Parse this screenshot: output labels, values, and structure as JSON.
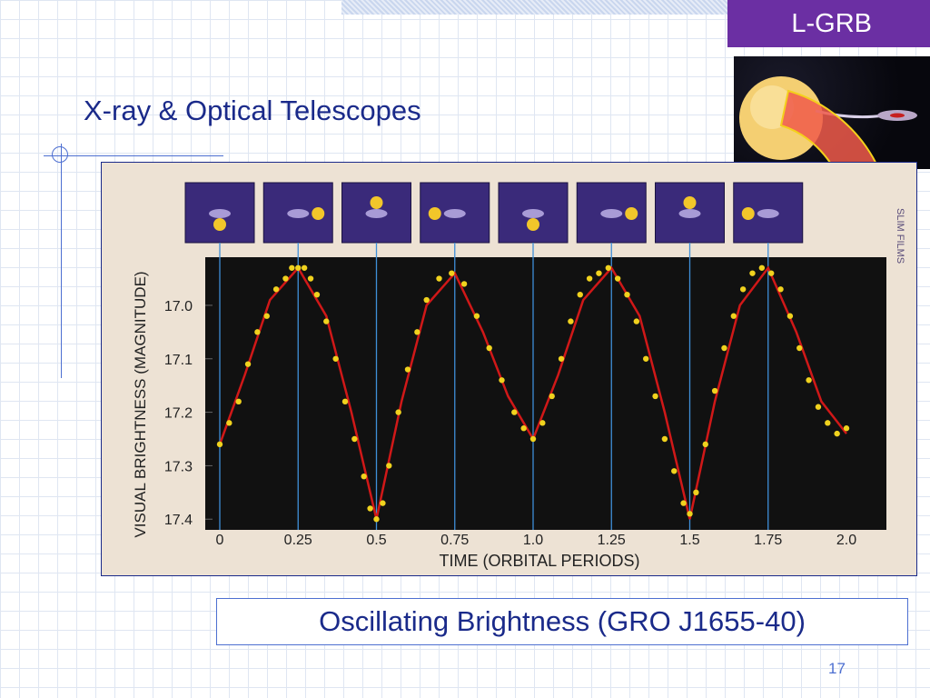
{
  "slide": {
    "title": "X-ray & Optical Telescopes",
    "tag": "L-GRB",
    "caption": "Oscillating Brightness (GRO J1655-40)",
    "page_number": "17",
    "credit": "SLIM FILMS",
    "accent_color": "#6b2fa3",
    "title_color": "#1a2a8a"
  },
  "chart_data": {
    "type": "scatter",
    "title": "",
    "xlabel": "TIME (ORBITAL PERIODS)",
    "ylabel": "VISUAL BRIGHTNESS (MAGNITUDE)",
    "xlim": [
      0,
      2.0
    ],
    "ylim": [
      17.42,
      16.91
    ],
    "y_reversed": true,
    "x_ticks": [
      "0",
      "0.25",
      "0.5",
      "0.75",
      "1.0",
      "1.25",
      "1.5",
      "1.75",
      "2.0"
    ],
    "y_ticks": [
      "17.0",
      "17.1",
      "17.2",
      "17.3",
      "17.4"
    ],
    "background": "#111111",
    "series": [
      {
        "color": "#f0d21e",
        "marker": "dot",
        "points": [
          [
            0.0,
            17.26
          ],
          [
            0.03,
            17.22
          ],
          [
            0.06,
            17.18
          ],
          [
            0.09,
            17.11
          ],
          [
            0.12,
            17.05
          ],
          [
            0.15,
            17.02
          ],
          [
            0.18,
            16.97
          ],
          [
            0.21,
            16.95
          ],
          [
            0.23,
            16.93
          ],
          [
            0.25,
            16.93
          ],
          [
            0.27,
            16.93
          ],
          [
            0.29,
            16.95
          ],
          [
            0.31,
            16.98
          ],
          [
            0.34,
            17.03
          ],
          [
            0.37,
            17.1
          ],
          [
            0.4,
            17.18
          ],
          [
            0.43,
            17.25
          ],
          [
            0.46,
            17.32
          ],
          [
            0.48,
            17.38
          ],
          [
            0.5,
            17.4
          ],
          [
            0.52,
            17.37
          ],
          [
            0.54,
            17.3
          ],
          [
            0.57,
            17.2
          ],
          [
            0.6,
            17.12
          ],
          [
            0.63,
            17.05
          ],
          [
            0.66,
            16.99
          ],
          [
            0.7,
            16.95
          ],
          [
            0.74,
            16.94
          ],
          [
            0.78,
            16.96
          ],
          [
            0.82,
            17.02
          ],
          [
            0.86,
            17.08
          ],
          [
            0.9,
            17.14
          ],
          [
            0.94,
            17.2
          ],
          [
            0.97,
            17.23
          ],
          [
            1.0,
            17.25
          ],
          [
            1.03,
            17.22
          ],
          [
            1.06,
            17.17
          ],
          [
            1.09,
            17.1
          ],
          [
            1.12,
            17.03
          ],
          [
            1.15,
            16.98
          ],
          [
            1.18,
            16.95
          ],
          [
            1.21,
            16.94
          ],
          [
            1.24,
            16.93
          ],
          [
            1.27,
            16.95
          ],
          [
            1.3,
            16.98
          ],
          [
            1.33,
            17.03
          ],
          [
            1.36,
            17.1
          ],
          [
            1.39,
            17.17
          ],
          [
            1.42,
            17.25
          ],
          [
            1.45,
            17.31
          ],
          [
            1.48,
            17.37
          ],
          [
            1.5,
            17.39
          ],
          [
            1.52,
            17.35
          ],
          [
            1.55,
            17.26
          ],
          [
            1.58,
            17.16
          ],
          [
            1.61,
            17.08
          ],
          [
            1.64,
            17.02
          ],
          [
            1.67,
            16.97
          ],
          [
            1.7,
            16.94
          ],
          [
            1.73,
            16.93
          ],
          [
            1.76,
            16.94
          ],
          [
            1.79,
            16.97
          ],
          [
            1.82,
            17.02
          ],
          [
            1.85,
            17.08
          ],
          [
            1.88,
            17.14
          ],
          [
            1.91,
            17.19
          ],
          [
            1.94,
            17.22
          ],
          [
            1.97,
            17.24
          ],
          [
            2.0,
            17.23
          ]
        ]
      },
      {
        "color": "#d01818",
        "marker": "line",
        "points": [
          [
            0.0,
            17.26
          ],
          [
            0.08,
            17.13
          ],
          [
            0.16,
            16.99
          ],
          [
            0.25,
            16.93
          ],
          [
            0.34,
            17.02
          ],
          [
            0.42,
            17.2
          ],
          [
            0.5,
            17.4
          ],
          [
            0.58,
            17.18
          ],
          [
            0.66,
            17.0
          ],
          [
            0.75,
            16.94
          ],
          [
            0.84,
            17.05
          ],
          [
            0.92,
            17.17
          ],
          [
            1.0,
            17.25
          ],
          [
            1.08,
            17.13
          ],
          [
            1.16,
            16.99
          ],
          [
            1.25,
            16.93
          ],
          [
            1.34,
            17.02
          ],
          [
            1.42,
            17.2
          ],
          [
            1.5,
            17.4
          ],
          [
            1.58,
            17.18
          ],
          [
            1.66,
            17.0
          ],
          [
            1.75,
            16.93
          ],
          [
            1.84,
            17.05
          ],
          [
            1.92,
            17.18
          ],
          [
            2.0,
            17.24
          ]
        ]
      }
    ],
    "reference_lines_x": [
      0,
      0.25,
      0.5,
      0.75,
      1.0,
      1.25,
      1.5,
      1.75
    ]
  }
}
